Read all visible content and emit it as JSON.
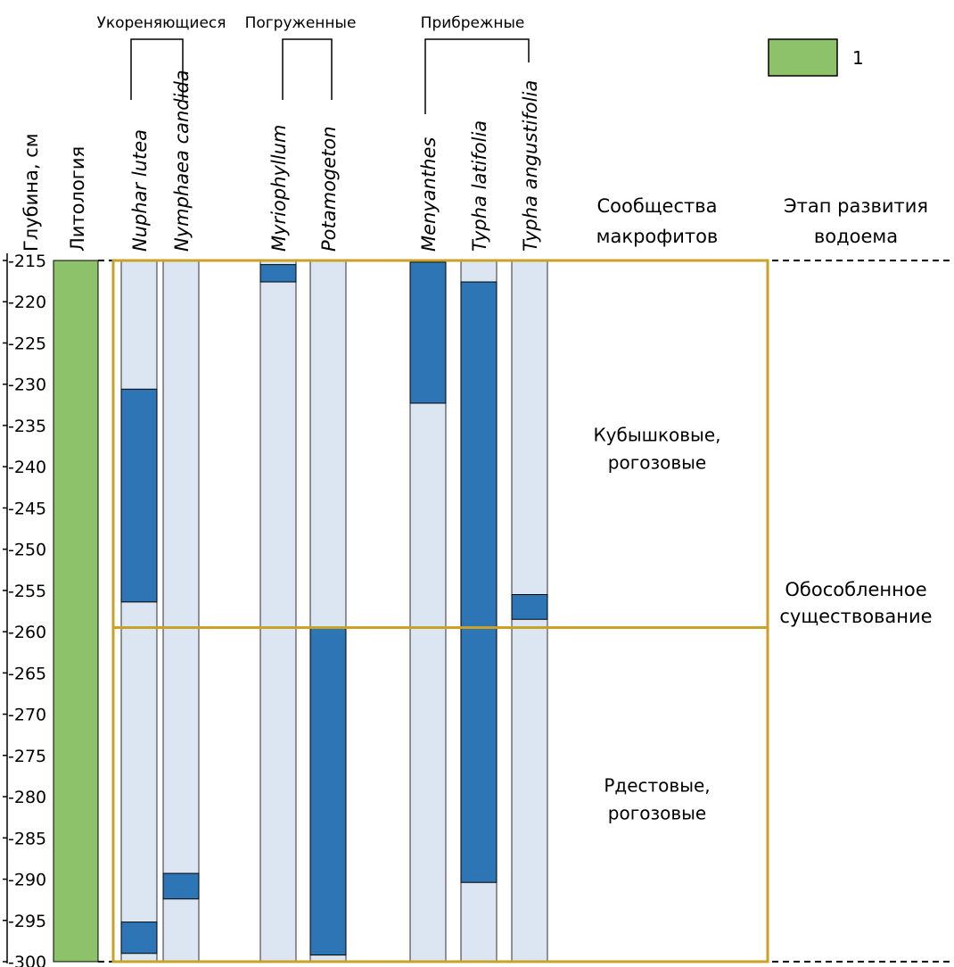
{
  "chart_data": {
    "type": "strip-diagram",
    "depth_axis": {
      "label": "Глубина, см",
      "range": [
        215,
        300
      ],
      "ticks": [
        215,
        220,
        225,
        230,
        235,
        240,
        245,
        250,
        255,
        260,
        265,
        270,
        275,
        280,
        285,
        290,
        295,
        300
      ],
      "tick_labels": [
        "-215",
        "-220",
        "-225",
        "-230",
        "-235",
        "-240",
        "-245",
        "-250",
        "-255",
        "-260",
        "-265",
        "-270",
        "-275",
        "-280",
        "-285",
        "-290",
        "-295",
        "-300"
      ]
    },
    "lithology": {
      "label": "Литология",
      "from": 215,
      "to": 300,
      "color": "#8DC26A",
      "legend_label": "1"
    },
    "groups": [
      {
        "label": "Укореняющиеся",
        "taxa": [
          "nuphar",
          "nymphaea"
        ]
      },
      {
        "label": "Погруженные",
        "taxa": [
          "myriophyllum",
          "potamogeton"
        ]
      },
      {
        "label": "Прибрежные",
        "taxa": [
          "menyanthes",
          "typha_latifolia",
          "typha_angustifolia"
        ]
      }
    ],
    "taxa": [
      {
        "id": "nuphar",
        "name": "Nuphar lutea",
        "present": [
          [
            230.6,
            256.4
          ],
          [
            295.2,
            299.0
          ]
        ]
      },
      {
        "id": "nymphaea",
        "name": "Nymphaea candida",
        "present": [
          [
            289.3,
            292.4
          ]
        ]
      },
      {
        "id": "myriophyllum",
        "name": "Myriophyllum",
        "present": [
          [
            215.5,
            217.6
          ]
        ]
      },
      {
        "id": "potamogeton",
        "name": "Potamogeton",
        "present": [
          [
            259.5,
            299.2
          ]
        ]
      },
      {
        "id": "menyanthes",
        "name": "Menyanthes",
        "present": [
          [
            215.2,
            232.3
          ]
        ]
      },
      {
        "id": "typha_latifolia",
        "name": "Typha latifolia",
        "present": [
          [
            217.6,
            290.4
          ]
        ]
      },
      {
        "id": "typha_angustifolia",
        "name": "Typha angustifolia",
        "present": [
          [
            255.5,
            258.5
          ]
        ]
      }
    ],
    "communities": {
      "label_line1": "Сообщества",
      "label_line2": "макрофитов",
      "zones": [
        {
          "from": 215,
          "to": 259.5,
          "line1": "Кубышковые,",
          "line2": "рогозовые"
        },
        {
          "from": 259.5,
          "to": 300,
          "line1": "Рдестовые,",
          "line2": "рогозовые"
        }
      ]
    },
    "stage": {
      "label_line1": "Этап развития",
      "label_line2": "водоема",
      "line1": "Обособленное",
      "line2": "существование"
    },
    "colors": {
      "absent": "#DCE6F2",
      "present": "#2E75B6",
      "zone_border": "#C9A227",
      "lithology": "#8DC26A"
    }
  }
}
